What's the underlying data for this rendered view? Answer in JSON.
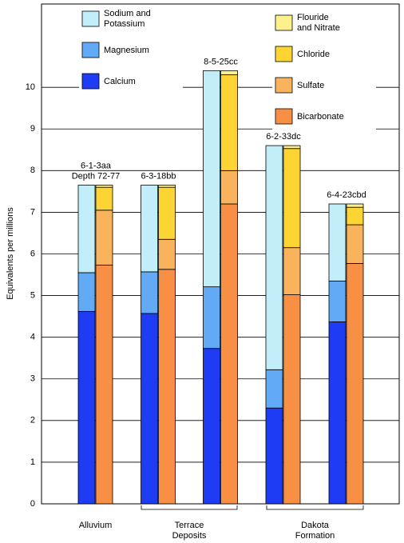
{
  "chart_data": {
    "type": "stacked_bar",
    "y_label": "Equivalents per millions",
    "categories": [
      "6-1-3aa\nDepth 72-77",
      "6-3-18bb",
      "8-5-25cc",
      "6-2-33dc",
      "6-4-23cbd"
    ],
    "series": [
      {
        "name": "Calcium",
        "color": "#1f3cf5",
        "stack": "cations",
        "values": [
          4.62,
          4.57,
          3.73,
          2.3,
          4.37
        ]
      },
      {
        "name": "Magnesium",
        "color": "#62aaf5",
        "stack": "cations",
        "values": [
          0.93,
          1.0,
          1.48,
          0.92,
          0.98
        ]
      },
      {
        "name": "Sodium and\nPotassium",
        "color": "#c2eefa",
        "stack": "cations",
        "values": [
          2.1,
          2.08,
          5.19,
          5.38,
          1.85
        ]
      },
      {
        "name": "Bicarbonate",
        "color": "#f78f45",
        "stack": "anions",
        "values": [
          5.73,
          5.63,
          7.2,
          5.02,
          5.77
        ]
      },
      {
        "name": "Sulfate",
        "color": "#f9b35c",
        "stack": "anions",
        "values": [
          1.32,
          0.72,
          0.8,
          1.13,
          0.93
        ]
      },
      {
        "name": "Chloride",
        "color": "#fcd535",
        "stack": "anions",
        "values": [
          0.55,
          1.25,
          2.3,
          2.38,
          0.42
        ]
      },
      {
        "name": "Flouride\nand Nitrate",
        "color": "#fdf18c",
        "stack": "anions",
        "values": [
          0.05,
          0.05,
          0.1,
          0.07,
          0.08
        ]
      }
    ],
    "groups": [
      {
        "label": "Alluvium"
      },
      {
        "label": "Terrace\nDeposits"
      },
      {
        "label": "Dakota\nFormation"
      }
    ],
    "ylim": [
      0,
      12
    ],
    "yticks": [
      0,
      1,
      2,
      3,
      4,
      5,
      6,
      7,
      8,
      9,
      10
    ],
    "grid": true
  }
}
